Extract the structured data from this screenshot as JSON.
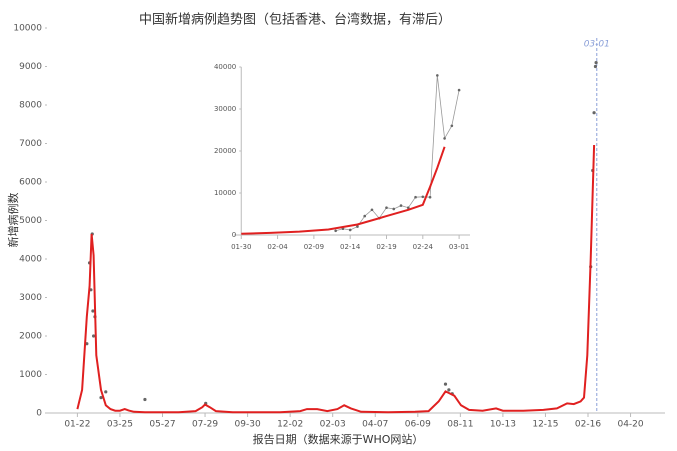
{
  "chart_data": [
    {
      "type": "line",
      "title": "中国新增病例趋势图（包括香港、台湾数据，有滞后）",
      "x_label": "报告日期（数据来源于WHO网站）",
      "y_label": "新增病例数",
      "xlim": [
        -45,
        870
      ],
      "ylim": [
        0,
        10000
      ],
      "xticks": [
        {
          "value": 0,
          "label": "01-22"
        },
        {
          "value": 63,
          "label": "03-25"
        },
        {
          "value": 126,
          "label": "05-27"
        },
        {
          "value": 189,
          "label": "07-29"
        },
        {
          "value": 252,
          "label": "09-30"
        },
        {
          "value": 315,
          "label": "12-02"
        },
        {
          "value": 378,
          "label": "02-03"
        },
        {
          "value": 441,
          "label": "04-07"
        },
        {
          "value": 504,
          "label": "06-09"
        },
        {
          "value": 567,
          "label": "08-11"
        },
        {
          "value": 630,
          "label": "10-13"
        },
        {
          "value": 693,
          "label": "12-15"
        },
        {
          "value": 756,
          "label": "02-16"
        },
        {
          "value": 819,
          "label": "04-20"
        }
      ],
      "yticks": [
        0,
        1000,
        2000,
        3000,
        4000,
        5000,
        6000,
        7000,
        8000,
        9000,
        10000
      ],
      "vline": {
        "x": 769,
        "label": "03-01",
        "color": "#8a9fd8"
      },
      "series": [
        {
          "color": "#999999",
          "style": "points",
          "x": [
            14,
            18,
            20,
            22,
            23,
            24,
            26,
            35,
            42,
            100,
            190,
            545,
            550,
            555,
            760,
            763,
            765,
            767,
            768
          ],
          "values": [
            1800,
            3900,
            3200,
            4650,
            2650,
            2000,
            2500,
            400,
            550,
            350,
            250,
            750,
            600,
            500,
            3800,
            6300,
            7800,
            9000,
            9100
          ]
        },
        {
          "color": "#e02020",
          "style": "line",
          "x": [
            0,
            7,
            14,
            18,
            21,
            24,
            28,
            35,
            42,
            49,
            56,
            63,
            70,
            77,
            84,
            100,
            126,
            150,
            175,
            185,
            189,
            196,
            205,
            230,
            270,
            300,
            330,
            340,
            355,
            370,
            385,
            395,
            405,
            420,
            460,
            500,
            520,
            535,
            545,
            550,
            558,
            568,
            580,
            600,
            620,
            630,
            660,
            690,
            710,
            725,
            735,
            745,
            750,
            755,
            760,
            765
          ],
          "values": [
            100,
            600,
            2500,
            3300,
            4650,
            4100,
            1500,
            600,
            200,
            100,
            60,
            60,
            100,
            60,
            30,
            20,
            20,
            20,
            50,
            150,
            220,
            150,
            50,
            20,
            20,
            20,
            50,
            100,
            100,
            50,
            100,
            200,
            120,
            30,
            20,
            30,
            50,
            300,
            560,
            520,
            450,
            200,
            80,
            60,
            120,
            60,
            60,
            80,
            120,
            250,
            230,
            300,
            400,
            1500,
            4000,
            6960
          ]
        }
      ]
    },
    {
      "type": "line",
      "xlim": [
        738,
        770.5
      ],
      "ylim": [
        0,
        40000
      ],
      "xticks": [
        {
          "value": 739,
          "label": "01-30"
        },
        {
          "value": 744,
          "label": "02-04"
        },
        {
          "value": 749,
          "label": "02-09"
        },
        {
          "value": 754,
          "label": "02-14"
        },
        {
          "value": 759,
          "label": "02-19"
        },
        {
          "value": 764,
          "label": "02-24"
        },
        {
          "value": 769,
          "label": "03-01"
        }
      ],
      "yticks": [
        0,
        10000,
        20000,
        30000,
        40000
      ],
      "series": [
        {
          "color": "#999999",
          "style": "line+points",
          "x": [
            752,
            753,
            754,
            755,
            756,
            757,
            758,
            759,
            760,
            761,
            762,
            763,
            764,
            765,
            766,
            767,
            768,
            769
          ],
          "values": [
            1000,
            1500,
            1200,
            2000,
            4500,
            6000,
            4000,
            6500,
            6200,
            7000,
            6500,
            9000,
            9100,
            9000,
            38000,
            23000,
            26000,
            34500
          ]
        },
        {
          "color": "#e02020",
          "style": "line",
          "x": [
            739,
            743,
            747,
            751,
            755,
            759,
            762,
            764,
            765,
            766,
            767
          ],
          "values": [
            300,
            500,
            800,
            1300,
            2500,
            4500,
            6000,
            7200,
            11500,
            16000,
            21000
          ]
        }
      ]
    }
  ]
}
